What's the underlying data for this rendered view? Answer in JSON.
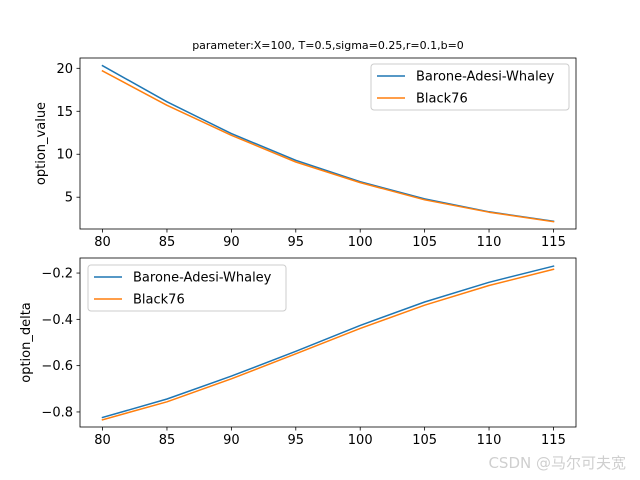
{
  "figure_title": "parameter:X=100, T=0.5,sigma=0.25,r=0.1,b=0",
  "watermark": "CSDN @马尔可夫宽",
  "colors": {
    "series1": "#1f77b4",
    "series2": "#ff7f0e",
    "axes": "#000000",
    "background": "#ffffff",
    "legend_border": "#cccccc"
  },
  "chart_data": [
    {
      "type": "line",
      "title": "parameter:X=100, T=0.5,sigma=0.25,r=0.1,b=0",
      "xlabel": "",
      "ylabel": "option_value",
      "x": [
        80,
        85,
        90,
        95,
        100,
        105,
        110,
        115
      ],
      "xlim": [
        78.25,
        116.75
      ],
      "ylim": [
        1.3,
        21.2
      ],
      "xticks": [
        80,
        85,
        90,
        95,
        100,
        105,
        110,
        115
      ],
      "yticks": [
        5,
        10,
        15,
        20
      ],
      "grid": false,
      "legend": "upper-right",
      "series": [
        {
          "name": "Barone-Adesi-Whaley",
          "values": [
            20.3,
            16.1,
            12.4,
            9.3,
            6.8,
            4.8,
            3.3,
            2.2
          ]
        },
        {
          "name": "Black76",
          "values": [
            19.7,
            15.7,
            12.2,
            9.1,
            6.7,
            4.7,
            3.25,
            2.15
          ]
        }
      ]
    },
    {
      "type": "line",
      "title": "",
      "xlabel": "",
      "ylabel": "option_delta",
      "x": [
        80,
        85,
        90,
        95,
        100,
        105,
        110,
        115
      ],
      "xlim": [
        78.25,
        116.75
      ],
      "ylim": [
        -0.865,
        -0.135
      ],
      "xticks": [
        80,
        85,
        90,
        95,
        100,
        105,
        110,
        115
      ],
      "yticks": [
        -0.8,
        -0.6,
        -0.4,
        -0.2
      ],
      "grid": false,
      "legend": "upper-left",
      "series": [
        {
          "name": "Barone-Adesi-Whaley",
          "values": [
            -0.824,
            -0.744,
            -0.645,
            -0.538,
            -0.426,
            -0.325,
            -0.24,
            -0.17
          ]
        },
        {
          "name": "Black76",
          "values": [
            -0.834,
            -0.756,
            -0.657,
            -0.549,
            -0.439,
            -0.339,
            -0.254,
            -0.184
          ]
        }
      ]
    }
  ]
}
